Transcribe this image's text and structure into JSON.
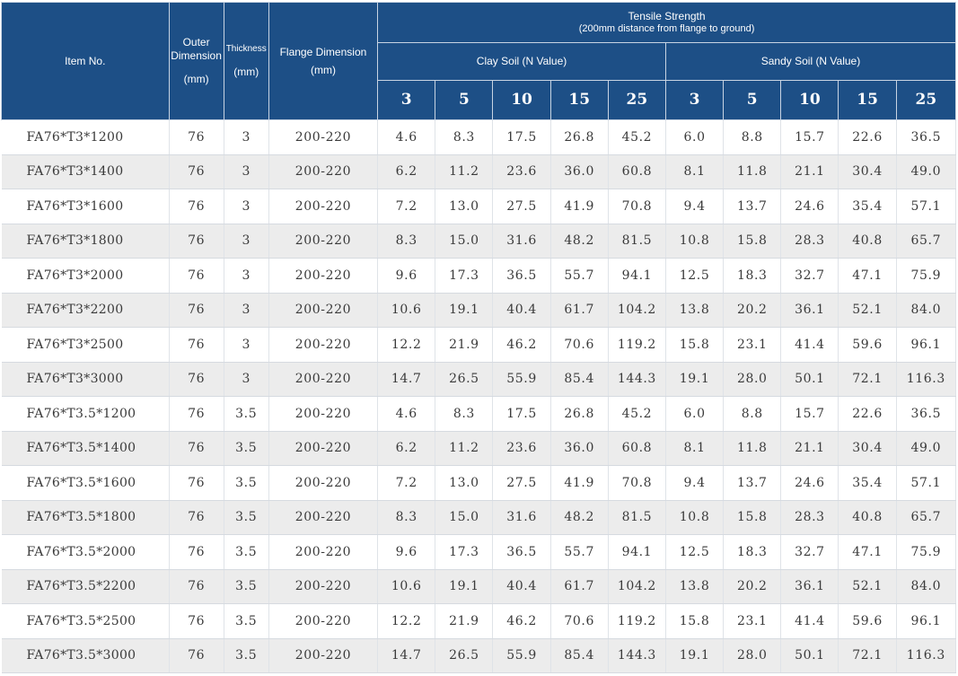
{
  "header": {
    "item_no": "Item No.",
    "outer_dimension": "Outer Dimension",
    "outer_unit": "(mm)",
    "thickness": "Thickness",
    "thickness_unit": "(mm)",
    "flange_dimension": "Flange Dimension",
    "flange_unit": "(mm)",
    "tensile_strength": "Tensile Strength",
    "tensile_note": "(200mm distance from flange to ground)",
    "clay_soil": "Clay Soil (N Value)",
    "sandy_soil": "Sandy Soil (N Value)",
    "n_values": [
      "3",
      "5",
      "10",
      "15",
      "25",
      "3",
      "5",
      "10",
      "15",
      "25"
    ]
  },
  "rows": [
    {
      "item": "FA76*T3*1200",
      "outer": "76",
      "thickness": "3",
      "flange": "200-220",
      "values": [
        "4.6",
        "8.3",
        "17.5",
        "26.8",
        "45.2",
        "6.0",
        "8.8",
        "15.7",
        "22.6",
        "36.5"
      ]
    },
    {
      "item": "FA76*T3*1400",
      "outer": "76",
      "thickness": "3",
      "flange": "200-220",
      "values": [
        "6.2",
        "11.2",
        "23.6",
        "36.0",
        "60.8",
        "8.1",
        "11.8",
        "21.1",
        "30.4",
        "49.0"
      ]
    },
    {
      "item": "FA76*T3*1600",
      "outer": "76",
      "thickness": "3",
      "flange": "200-220",
      "values": [
        "7.2",
        "13.0",
        "27.5",
        "41.9",
        "70.8",
        "9.4",
        "13.7",
        "24.6",
        "35.4",
        "57.1"
      ]
    },
    {
      "item": "FA76*T3*1800",
      "outer": "76",
      "thickness": "3",
      "flange": "200-220",
      "values": [
        "8.3",
        "15.0",
        "31.6",
        "48.2",
        "81.5",
        "10.8",
        "15.8",
        "28.3",
        "40.8",
        "65.7"
      ]
    },
    {
      "item": "FA76*T3*2000",
      "outer": "76",
      "thickness": "3",
      "flange": "200-220",
      "values": [
        "9.6",
        "17.3",
        "36.5",
        "55.7",
        "94.1",
        "12.5",
        "18.3",
        "32.7",
        "47.1",
        "75.9"
      ]
    },
    {
      "item": "FA76*T3*2200",
      "outer": "76",
      "thickness": "3",
      "flange": "200-220",
      "values": [
        "10.6",
        "19.1",
        "40.4",
        "61.7",
        "104.2",
        "13.8",
        "20.2",
        "36.1",
        "52.1",
        "84.0"
      ]
    },
    {
      "item": "FA76*T3*2500",
      "outer": "76",
      "thickness": "3",
      "flange": "200-220",
      "values": [
        "12.2",
        "21.9",
        "46.2",
        "70.6",
        "119.2",
        "15.8",
        "23.1",
        "41.4",
        "59.6",
        "96.1"
      ]
    },
    {
      "item": "FA76*T3*3000",
      "outer": "76",
      "thickness": "3",
      "flange": "200-220",
      "values": [
        "14.7",
        "26.5",
        "55.9",
        "85.4",
        "144.3",
        "19.1",
        "28.0",
        "50.1",
        "72.1",
        "116.3"
      ]
    },
    {
      "item": "FA76*T3.5*1200",
      "outer": "76",
      "thickness": "3.5",
      "flange": "200-220",
      "values": [
        "4.6",
        "8.3",
        "17.5",
        "26.8",
        "45.2",
        "6.0",
        "8.8",
        "15.7",
        "22.6",
        "36.5"
      ]
    },
    {
      "item": "FA76*T3.5*1400",
      "outer": "76",
      "thickness": "3.5",
      "flange": "200-220",
      "values": [
        "6.2",
        "11.2",
        "23.6",
        "36.0",
        "60.8",
        "8.1",
        "11.8",
        "21.1",
        "30.4",
        "49.0"
      ]
    },
    {
      "item": "FA76*T3.5*1600",
      "outer": "76",
      "thickness": "3.5",
      "flange": "200-220",
      "values": [
        "7.2",
        "13.0",
        "27.5",
        "41.9",
        "70.8",
        "9.4",
        "13.7",
        "24.6",
        "35.4",
        "57.1"
      ]
    },
    {
      "item": "FA76*T3.5*1800",
      "outer": "76",
      "thickness": "3.5",
      "flange": "200-220",
      "values": [
        "8.3",
        "15.0",
        "31.6",
        "48.2",
        "81.5",
        "10.8",
        "15.8",
        "28.3",
        "40.8",
        "65.7"
      ]
    },
    {
      "item": "FA76*T3.5*2000",
      "outer": "76",
      "thickness": "3.5",
      "flange": "200-220",
      "values": [
        "9.6",
        "17.3",
        "36.5",
        "55.7",
        "94.1",
        "12.5",
        "18.3",
        "32.7",
        "47.1",
        "75.9"
      ]
    },
    {
      "item": "FA76*T3.5*2200",
      "outer": "76",
      "thickness": "3.5",
      "flange": "200-220",
      "values": [
        "10.6",
        "19.1",
        "40.4",
        "61.7",
        "104.2",
        "13.8",
        "20.2",
        "36.1",
        "52.1",
        "84.0"
      ]
    },
    {
      "item": "FA76*T3.5*2500",
      "outer": "76",
      "thickness": "3.5",
      "flange": "200-220",
      "values": [
        "12.2",
        "21.9",
        "46.2",
        "70.6",
        "119.2",
        "15.8",
        "23.1",
        "41.4",
        "59.6",
        "96.1"
      ]
    },
    {
      "item": "FA76*T3.5*3000",
      "outer": "76",
      "thickness": "3.5",
      "flange": "200-220",
      "values": [
        "14.7",
        "26.5",
        "55.9",
        "85.4",
        "144.3",
        "19.1",
        "28.0",
        "50.1",
        "72.1",
        "116.3"
      ]
    }
  ],
  "colors": {
    "header_bg": "#1d4f86",
    "header_text": "#ffffff",
    "row_alt_bg": "#ececec",
    "cell_text": "#3a3a3a"
  }
}
